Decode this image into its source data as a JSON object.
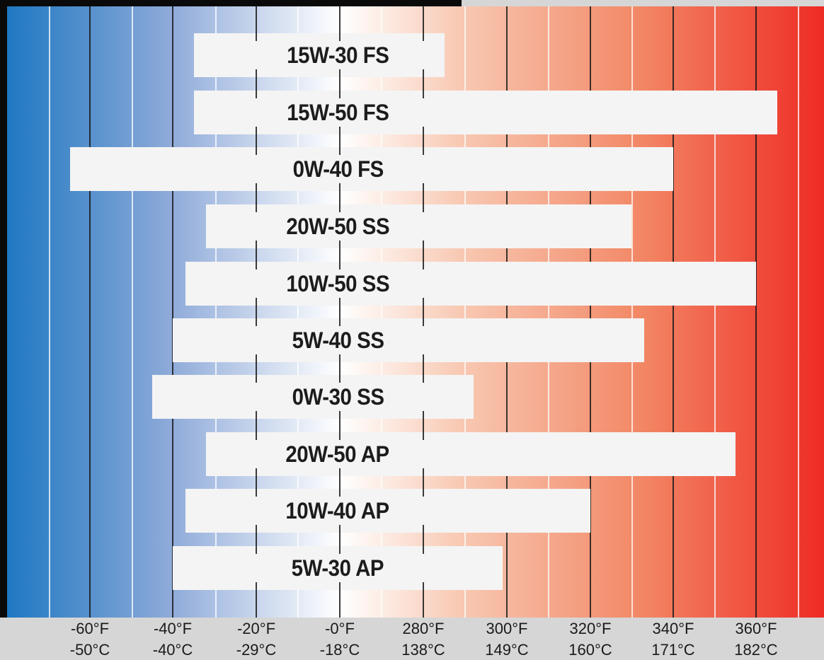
{
  "chart_data": {
    "type": "bar",
    "orientation": "horizontal-range",
    "gradient_colors": [
      "#1e78c2",
      "#ffffff",
      "#ee2b25"
    ],
    "bar_color": "#f4f4f4",
    "axis_ticks": [
      {
        "f": "-60°F",
        "c": "-50°C"
      },
      {
        "f": "-40°F",
        "c": "-40°C"
      },
      {
        "f": "-20°F",
        "c": "-29°C"
      },
      {
        "f": "-0°F",
        "c": "-18°C"
      },
      {
        "f": "280°F",
        "c": "138°C"
      },
      {
        "f": "300°F",
        "c": "149°C"
      },
      {
        "f": "320°F",
        "c": "160°C"
      },
      {
        "f": "340°F",
        "c": "171°C"
      },
      {
        "f": "360°F",
        "c": "182°C"
      }
    ],
    "series": [
      {
        "name": "15W-30 FS",
        "min_f": -35,
        "max_f": 285
      },
      {
        "name": "15W-50 FS",
        "min_f": -35,
        "max_f": 365
      },
      {
        "name": "0W-40 FS",
        "min_f": -65,
        "max_f": 340
      },
      {
        "name": "20W-50 SS",
        "min_f": -32,
        "max_f": 330
      },
      {
        "name": "10W-50 SS",
        "min_f": -37,
        "max_f": 360
      },
      {
        "name": "5W-40 SS",
        "min_f": -40,
        "max_f": 333
      },
      {
        "name": "0W-30 SS",
        "min_f": -45,
        "max_f": 292
      },
      {
        "name": "20W-50 AP",
        "min_f": -32,
        "max_f": 355
      },
      {
        "name": "10W-40 AP",
        "min_f": -37,
        "max_f": 320
      },
      {
        "name": "5W-30 AP",
        "min_f": -40,
        "max_f": 299
      }
    ]
  }
}
